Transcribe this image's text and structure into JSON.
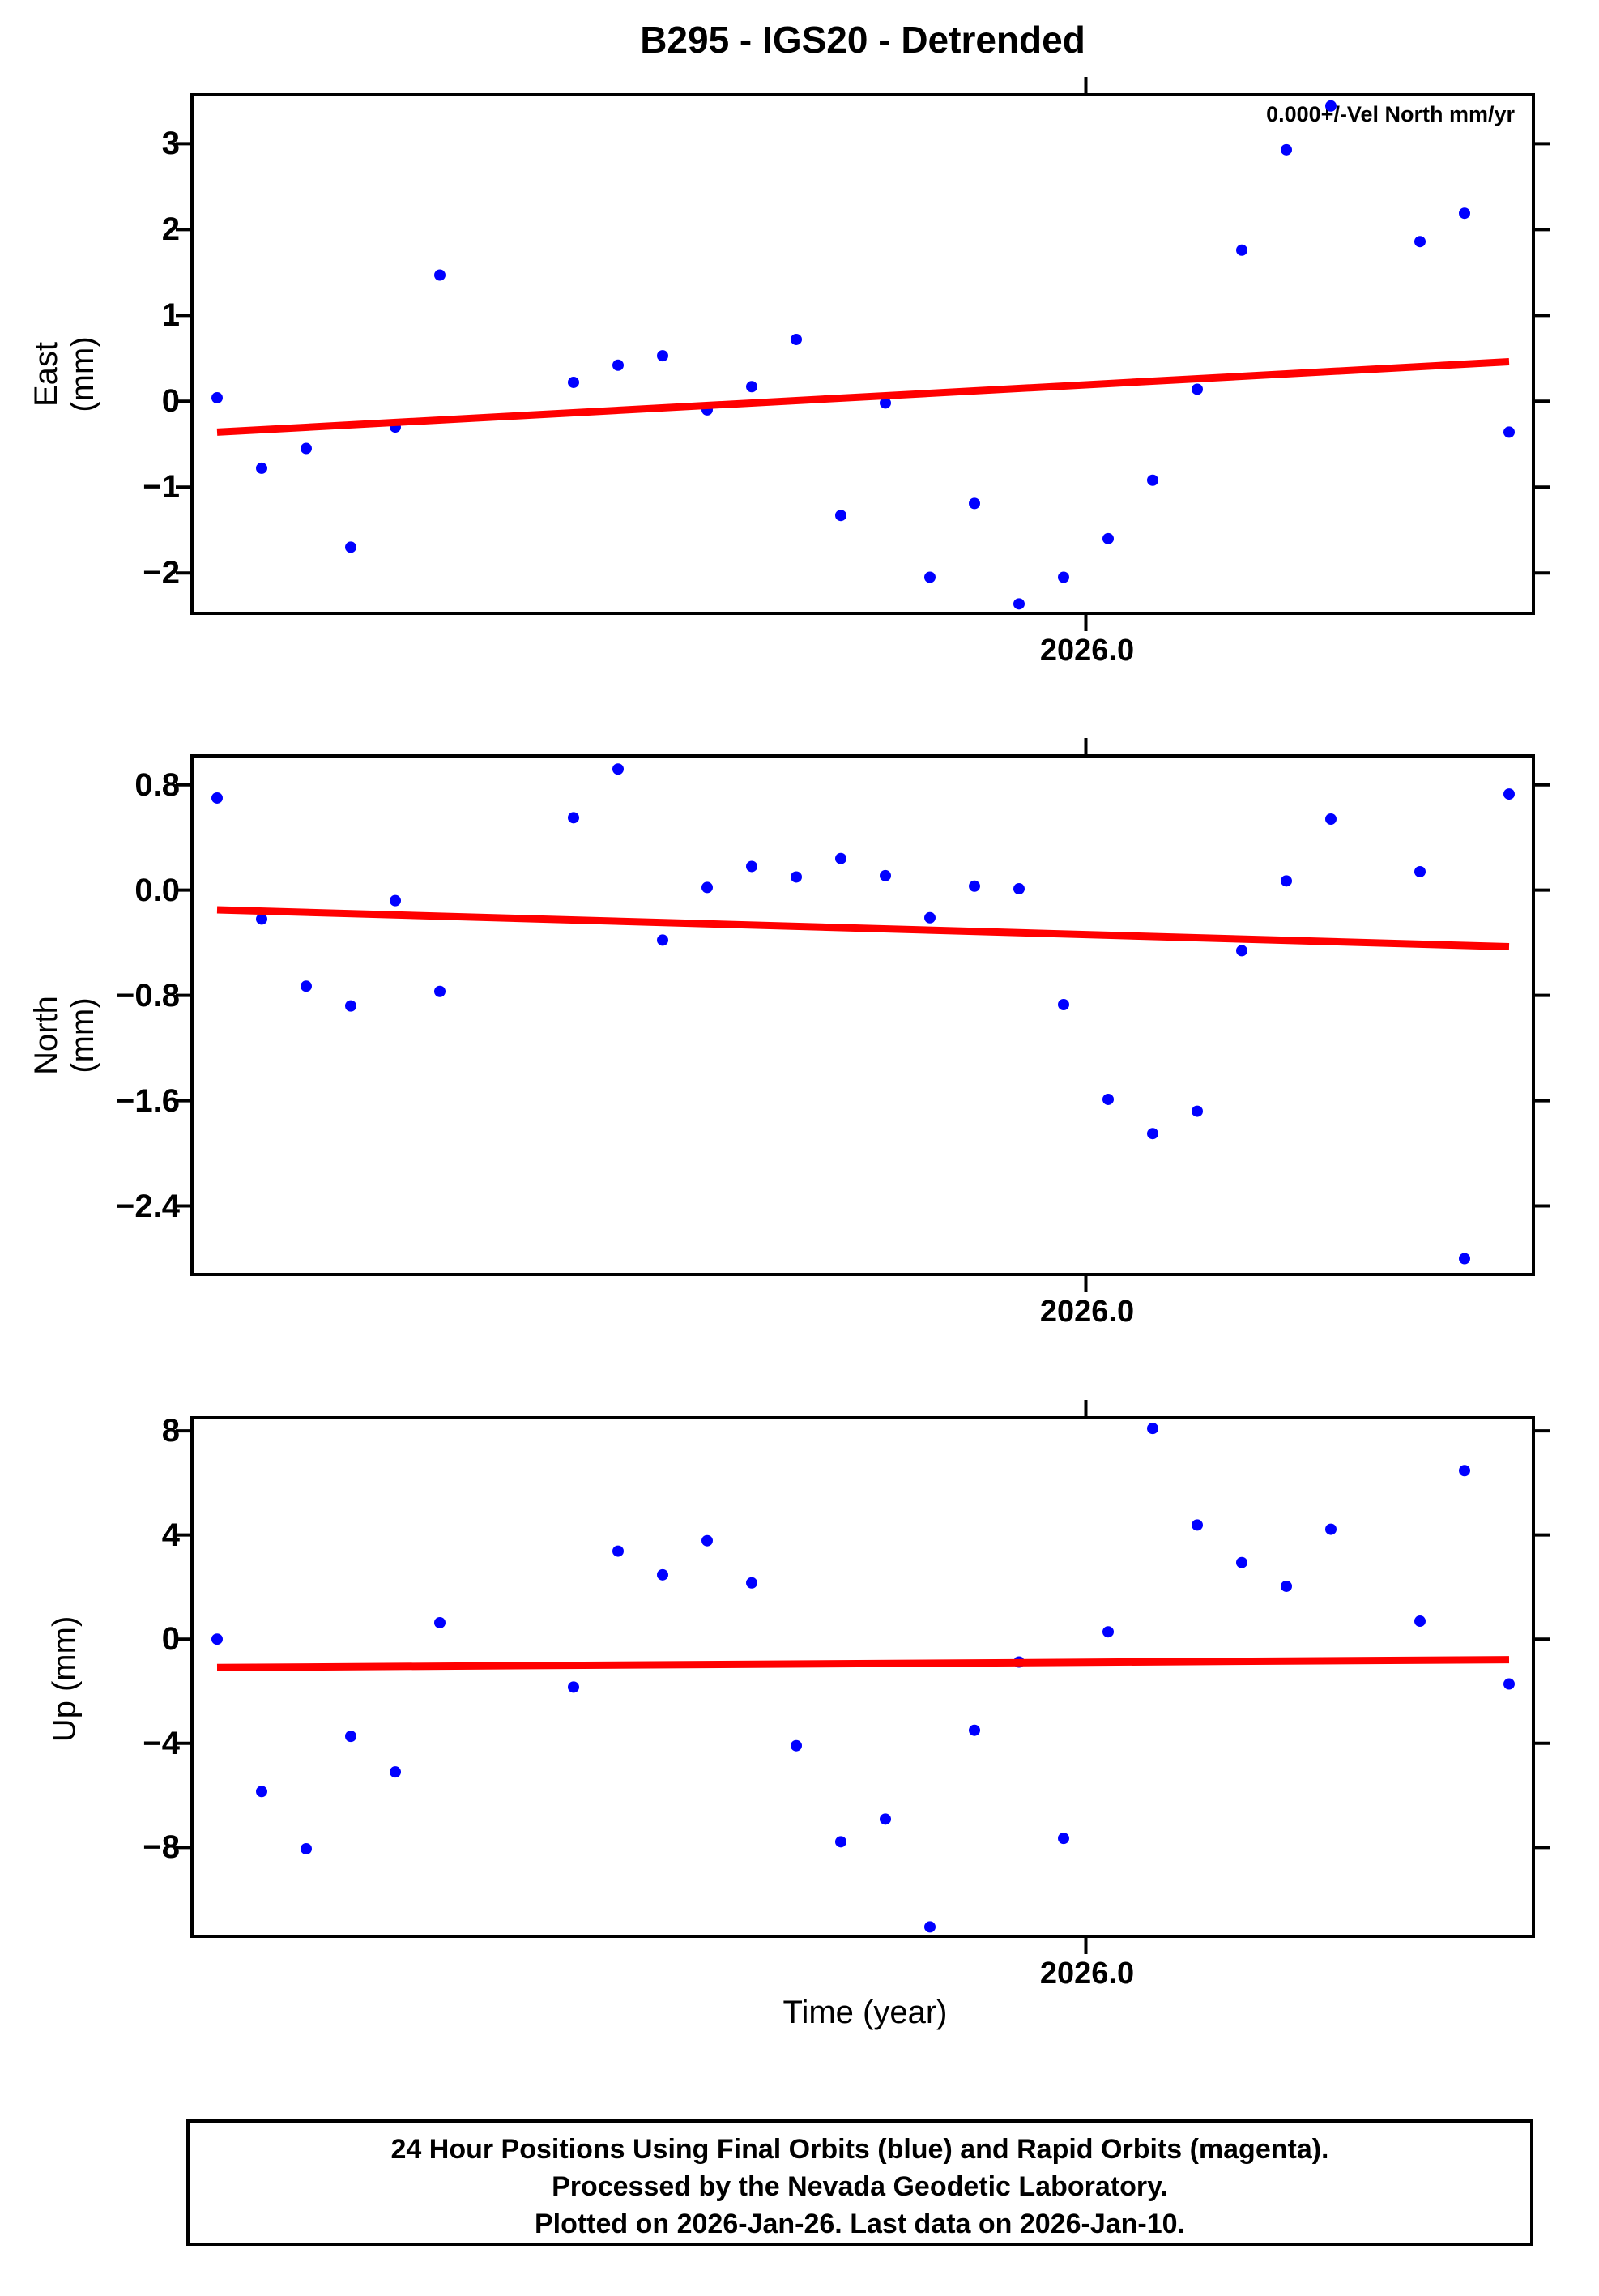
{
  "title": "B295 - IGS20 - Detrended",
  "annotation": "0.000+/-Vel North mm/yr",
  "xlabel": "Time (year)",
  "x_tick_label": "2026.0",
  "colors": {
    "points": "#0000ff",
    "trend": "#ff0000",
    "frame": "#000000",
    "background": "#ffffff"
  },
  "caption": {
    "line1": "24 Hour Positions Using Final Orbits (blue) and Rapid Orbits (magenta).",
    "line2": "Processed by the Nevada Geodetic Laboratory.",
    "line3": "Plotted on 2026-Jan-26. Last data on 2026-Jan-10."
  },
  "chart_data": {
    "type": "scatter",
    "description": "Daily GPS station position time series (detrended), station B295, IGS20 frame. Three stacked panels: East, North, Up residuals in mm vs time in decimal years. Blue dots = 24h final-orbit solutions, red line = linear trend. Data gaps on 2025-12-18, 2025-12-19 and 2026-01-07.",
    "x_axis": {
      "label": "Time (year)",
      "tick_value": 2026.0,
      "tick_label": "2026.0",
      "tick_day": 19.5,
      "day_min": -0.56,
      "day_max": 29.55,
      "first_point_date": "2025-12-12",
      "last_point_date": "2026-01-10"
    },
    "grid": false,
    "legend": false,
    "panels": [
      {
        "key": "east",
        "ylabel": "East (mm)",
        "ylim": [
          -2.47,
          3.57
        ],
        "yticks": [
          {
            "v": 3,
            "label": "3"
          },
          {
            "v": 2,
            "label": "2"
          },
          {
            "v": 1,
            "label": "1"
          },
          {
            "v": 0,
            "label": "0"
          },
          {
            "v": -1,
            "label": "−1"
          },
          {
            "v": -2,
            "label": "−2"
          }
        ],
        "trend": {
          "d0": 0,
          "v0": -0.36,
          "d1": 29,
          "v1": 0.46
        },
        "points": [
          {
            "d": 0,
            "date": "2025-12-12",
            "year": 2025.9466,
            "value": 0.04
          },
          {
            "d": 1,
            "date": "2025-12-13",
            "year": 2025.9493,
            "value": -0.78
          },
          {
            "d": 2,
            "date": "2025-12-14",
            "year": 2025.9521,
            "value": -0.55
          },
          {
            "d": 3,
            "date": "2025-12-15",
            "year": 2025.9548,
            "value": -1.7
          },
          {
            "d": 4,
            "date": "2025-12-16",
            "year": 2025.9575,
            "value": -0.3
          },
          {
            "d": 5,
            "date": "2025-12-17",
            "year": 2025.9603,
            "value": 1.47
          },
          {
            "d": 8,
            "date": "2025-12-20",
            "year": 2025.9685,
            "value": 0.22
          },
          {
            "d": 9,
            "date": "2025-12-21",
            "year": 2025.9712,
            "value": 0.42
          },
          {
            "d": 10,
            "date": "2025-12-22",
            "year": 2025.974,
            "value": 0.53
          },
          {
            "d": 11,
            "date": "2025-12-23",
            "year": 2025.9767,
            "value": -0.1
          },
          {
            "d": 12,
            "date": "2025-12-24",
            "year": 2025.9795,
            "value": 0.17
          },
          {
            "d": 13,
            "date": "2025-12-25",
            "year": 2025.9822,
            "value": 0.72
          },
          {
            "d": 14,
            "date": "2025-12-26",
            "year": 2025.9849,
            "value": -1.33
          },
          {
            "d": 15,
            "date": "2025-12-27",
            "year": 2025.9877,
            "value": -0.02
          },
          {
            "d": 16,
            "date": "2025-12-28",
            "year": 2025.9904,
            "value": -2.05
          },
          {
            "d": 17,
            "date": "2025-12-29",
            "year": 2025.9932,
            "value": -1.19
          },
          {
            "d": 18,
            "date": "2025-12-30",
            "year": 2025.9959,
            "value": -2.36
          },
          {
            "d": 19,
            "date": "2025-12-31",
            "year": 2025.9986,
            "value": -2.05
          },
          {
            "d": 20,
            "date": "2026-01-01",
            "year": 2026.0014,
            "value": -1.6
          },
          {
            "d": 21,
            "date": "2026-01-02",
            "year": 2026.0041,
            "value": -0.92
          },
          {
            "d": 22,
            "date": "2026-01-03",
            "year": 2026.0068,
            "value": 0.14
          },
          {
            "d": 23,
            "date": "2026-01-04",
            "year": 2026.0096,
            "value": 1.76
          },
          {
            "d": 24,
            "date": "2026-01-05",
            "year": 2026.0123,
            "value": 2.93
          },
          {
            "d": 25,
            "date": "2026-01-06",
            "year": 2026.0151,
            "value": 3.44
          },
          {
            "d": 27,
            "date": "2026-01-08",
            "year": 2026.0205,
            "value": 1.86
          },
          {
            "d": 28,
            "date": "2026-01-09",
            "year": 2026.0233,
            "value": 2.19
          },
          {
            "d": 29,
            "date": "2026-01-10",
            "year": 2026.026,
            "value": -0.36
          }
        ]
      },
      {
        "key": "north",
        "ylabel": "North (mm)",
        "ylim": [
          -2.92,
          1.02
        ],
        "yticks": [
          {
            "v": 0.8,
            "label": "0.8"
          },
          {
            "v": 0.0,
            "label": "0.0"
          },
          {
            "v": -0.8,
            "label": "−0.8"
          },
          {
            "v": -1.6,
            "label": "−1.6"
          },
          {
            "v": -2.4,
            "label": "−2.4"
          }
        ],
        "trend": {
          "d0": 0,
          "v0": -0.15,
          "d1": 29,
          "v1": -0.43
        },
        "points": [
          {
            "d": 0,
            "date": "2025-12-12",
            "year": 2025.9466,
            "value": 0.7
          },
          {
            "d": 1,
            "date": "2025-12-13",
            "year": 2025.9493,
            "value": -0.22
          },
          {
            "d": 2,
            "date": "2025-12-14",
            "year": 2025.9521,
            "value": -0.73
          },
          {
            "d": 3,
            "date": "2025-12-15",
            "year": 2025.9548,
            "value": -0.88
          },
          {
            "d": 4,
            "date": "2025-12-16",
            "year": 2025.9575,
            "value": -0.08
          },
          {
            "d": 5,
            "date": "2025-12-17",
            "year": 2025.9603,
            "value": -0.77
          },
          {
            "d": 8,
            "date": "2025-12-20",
            "year": 2025.9685,
            "value": 0.55
          },
          {
            "d": 9,
            "date": "2025-12-21",
            "year": 2025.9712,
            "value": 0.92
          },
          {
            "d": 10,
            "date": "2025-12-22",
            "year": 2025.974,
            "value": -0.38
          },
          {
            "d": 11,
            "date": "2025-12-23",
            "year": 2025.9767,
            "value": 0.02
          },
          {
            "d": 12,
            "date": "2025-12-24",
            "year": 2025.9795,
            "value": 0.18
          },
          {
            "d": 13,
            "date": "2025-12-25",
            "year": 2025.9822,
            "value": 0.1
          },
          {
            "d": 14,
            "date": "2025-12-26",
            "year": 2025.9849,
            "value": 0.24
          },
          {
            "d": 15,
            "date": "2025-12-27",
            "year": 2025.9877,
            "value": 0.11
          },
          {
            "d": 16,
            "date": "2025-12-28",
            "year": 2025.9904,
            "value": -0.21
          },
          {
            "d": 17,
            "date": "2025-12-29",
            "year": 2025.9932,
            "value": 0.03
          },
          {
            "d": 18,
            "date": "2025-12-30",
            "year": 2025.9959,
            "value": 0.01
          },
          {
            "d": 19,
            "date": "2025-12-31",
            "year": 2025.9986,
            "value": -0.87
          },
          {
            "d": 20,
            "date": "2026-01-01",
            "year": 2026.0014,
            "value": -1.59
          },
          {
            "d": 21,
            "date": "2026-01-02",
            "year": 2026.0041,
            "value": -1.85
          },
          {
            "d": 22,
            "date": "2026-01-03",
            "year": 2026.0068,
            "value": -1.68
          },
          {
            "d": 23,
            "date": "2026-01-04",
            "year": 2026.0096,
            "value": -0.46
          },
          {
            "d": 24,
            "date": "2026-01-05",
            "year": 2026.0123,
            "value": 0.07
          },
          {
            "d": 25,
            "date": "2026-01-06",
            "year": 2026.0151,
            "value": 0.54
          },
          {
            "d": 27,
            "date": "2026-01-08",
            "year": 2026.0205,
            "value": 0.14
          },
          {
            "d": 28,
            "date": "2026-01-09",
            "year": 2026.0233,
            "value": -2.8
          },
          {
            "d": 29,
            "date": "2026-01-10",
            "year": 2026.026,
            "value": 0.73
          }
        ]
      },
      {
        "key": "up",
        "ylabel": "Up (mm)",
        "ylim": [
          -11.41,
          8.5
        ],
        "yticks": [
          {
            "v": 8,
            "label": "8"
          },
          {
            "v": 4,
            "label": "4"
          },
          {
            "v": 0,
            "label": "0"
          },
          {
            "v": -4,
            "label": "−4"
          },
          {
            "v": -8,
            "label": "−8"
          }
        ],
        "trend": {
          "d0": 0,
          "v0": -1.09,
          "d1": 29,
          "v1": -0.79
        },
        "points": [
          {
            "d": 0,
            "date": "2025-12-12",
            "year": 2025.9466,
            "value": 0.0
          },
          {
            "d": 1,
            "date": "2025-12-13",
            "year": 2025.9493,
            "value": -5.85
          },
          {
            "d": 2,
            "date": "2025-12-14",
            "year": 2025.9521,
            "value": -8.05
          },
          {
            "d": 3,
            "date": "2025-12-15",
            "year": 2025.9548,
            "value": -3.73
          },
          {
            "d": 4,
            "date": "2025-12-16",
            "year": 2025.9575,
            "value": -5.1
          },
          {
            "d": 5,
            "date": "2025-12-17",
            "year": 2025.9603,
            "value": 0.63
          },
          {
            "d": 8,
            "date": "2025-12-20",
            "year": 2025.9685,
            "value": -1.84
          },
          {
            "d": 9,
            "date": "2025-12-21",
            "year": 2025.9712,
            "value": 3.38
          },
          {
            "d": 10,
            "date": "2025-12-22",
            "year": 2025.974,
            "value": 2.47
          },
          {
            "d": 11,
            "date": "2025-12-23",
            "year": 2025.9767,
            "value": 3.78
          },
          {
            "d": 12,
            "date": "2025-12-24",
            "year": 2025.9795,
            "value": 2.16
          },
          {
            "d": 13,
            "date": "2025-12-25",
            "year": 2025.9822,
            "value": -4.09
          },
          {
            "d": 14,
            "date": "2025-12-26",
            "year": 2025.9849,
            "value": -7.78
          },
          {
            "d": 15,
            "date": "2025-12-27",
            "year": 2025.9877,
            "value": -6.91
          },
          {
            "d": 16,
            "date": "2025-12-28",
            "year": 2025.9904,
            "value": -11.05
          },
          {
            "d": 17,
            "date": "2025-12-29",
            "year": 2025.9932,
            "value": -3.5
          },
          {
            "d": 18,
            "date": "2025-12-30",
            "year": 2025.9959,
            "value": -0.88
          },
          {
            "d": 19,
            "date": "2025-12-31",
            "year": 2025.9986,
            "value": -7.65
          },
          {
            "d": 20,
            "date": "2026-01-01",
            "year": 2026.0014,
            "value": 0.28
          },
          {
            "d": 21,
            "date": "2026-01-02",
            "year": 2026.0041,
            "value": 8.09
          },
          {
            "d": 22,
            "date": "2026-01-03",
            "year": 2026.0068,
            "value": 4.38
          },
          {
            "d": 23,
            "date": "2026-01-04",
            "year": 2026.0096,
            "value": 2.94
          },
          {
            "d": 24,
            "date": "2026-01-05",
            "year": 2026.0123,
            "value": 2.03
          },
          {
            "d": 25,
            "date": "2026-01-06",
            "year": 2026.0151,
            "value": 4.22
          },
          {
            "d": 27,
            "date": "2026-01-08",
            "year": 2026.0205,
            "value": 0.69
          },
          {
            "d": 28,
            "date": "2026-01-09",
            "year": 2026.0233,
            "value": 6.47
          },
          {
            "d": 29,
            "date": "2026-01-10",
            "year": 2026.026,
            "value": -1.72
          }
        ]
      }
    ]
  }
}
